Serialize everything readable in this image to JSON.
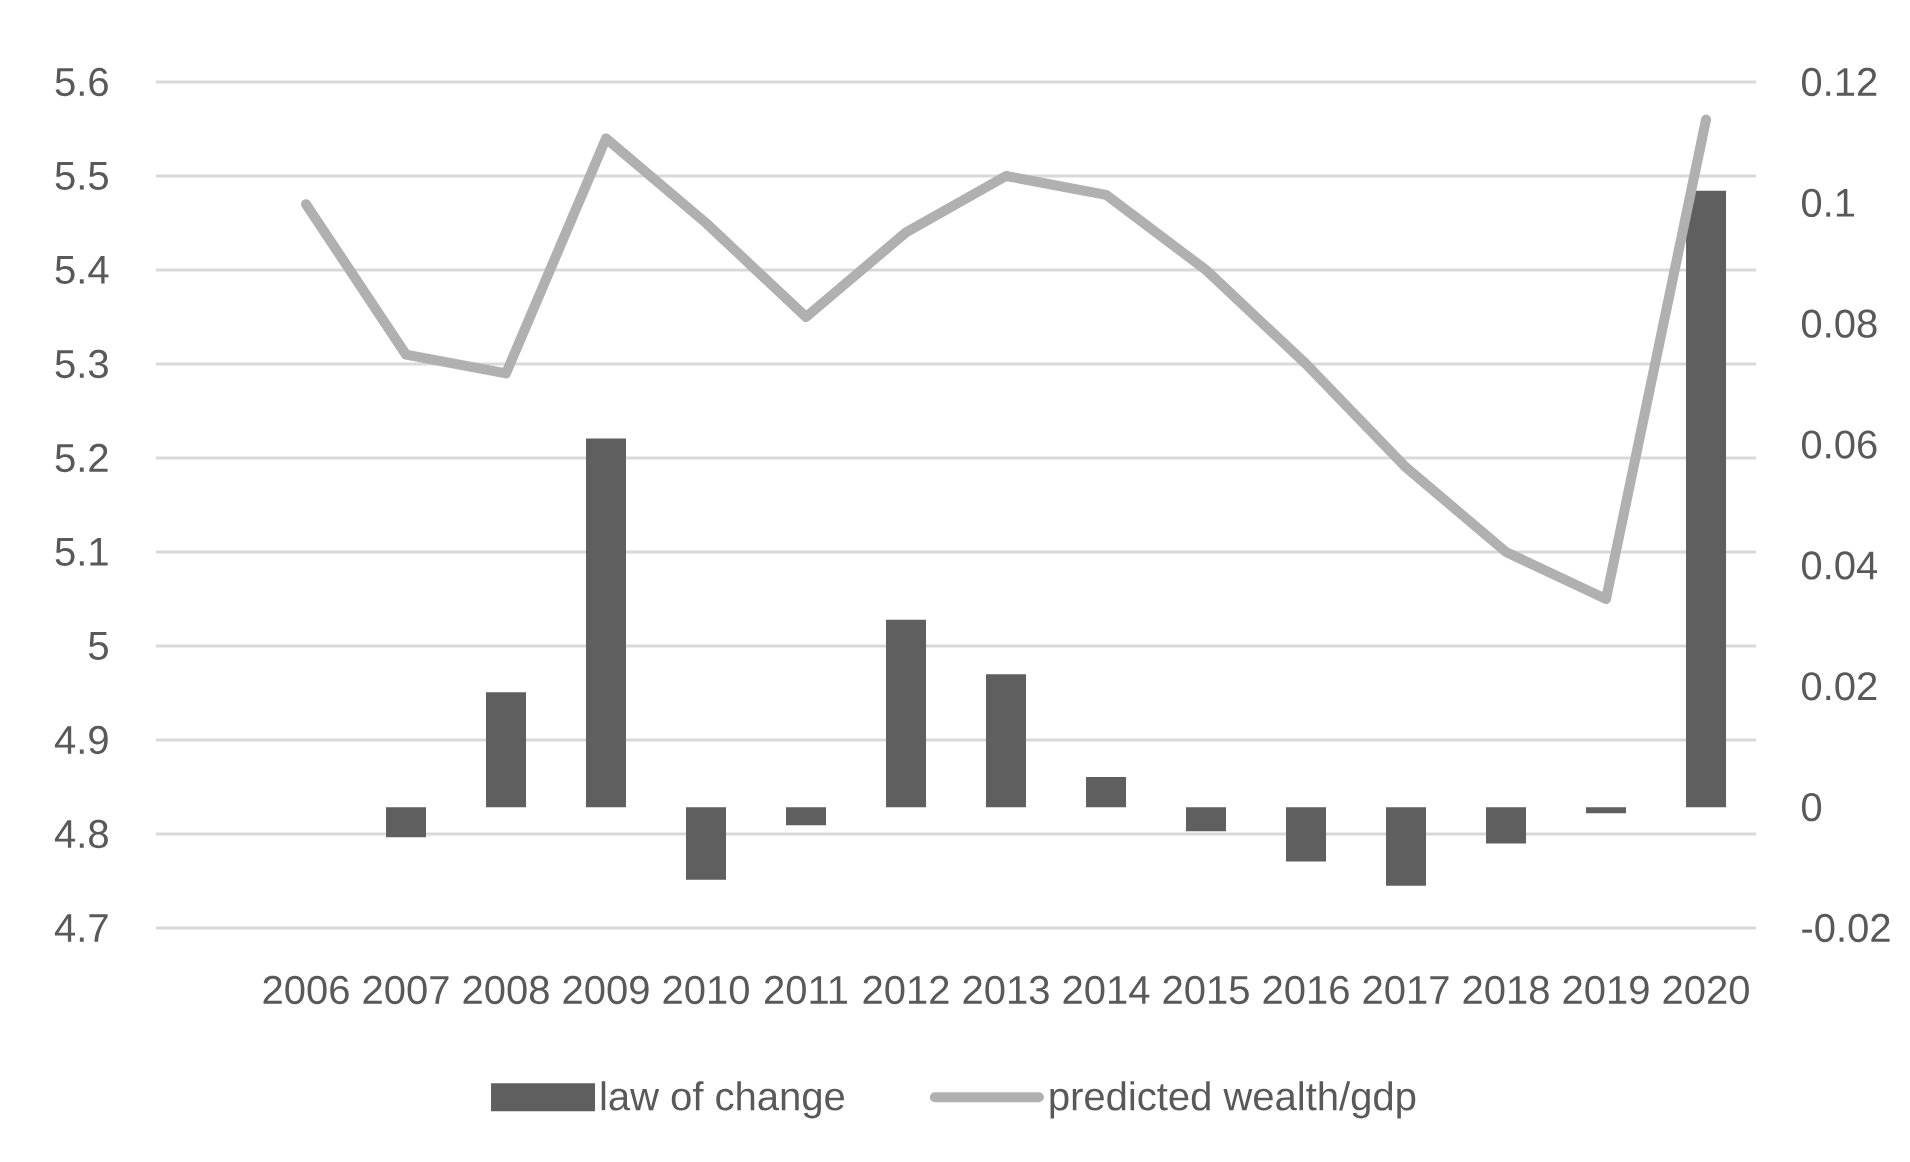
{
  "chart_data": {
    "type": "bar",
    "categories": [
      null,
      "2006",
      "2007",
      "2008",
      "2009",
      "2010",
      "2011",
      "2012",
      "2013",
      "2014",
      "2015",
      "2016",
      "2017",
      "2018",
      "2019",
      "2020"
    ],
    "series": [
      {
        "name": "law of change",
        "axis": "y2",
        "color": "#5f5f5f",
        "values": [
          null,
          null,
          -0.005,
          0.019,
          0.061,
          -0.012,
          -0.003,
          0.031,
          0.022,
          0.005,
          -0.004,
          -0.009,
          -0.013,
          -0.006,
          -0.001,
          0.102
        ]
      },
      {
        "name": "predicted wealth/gdp",
        "type": "line",
        "color": "#b0b0b0",
        "values": [
          null,
          5.47,
          5.31,
          5.29,
          5.54,
          5.45,
          5.35,
          5.44,
          5.5,
          5.48,
          5.4,
          5.3,
          5.19,
          5.1,
          5.05,
          5.56
        ]
      }
    ],
    "ylim": [
      4.7,
      5.6
    ],
    "yticks": [
      4.7,
      4.8,
      4.9,
      5,
      5.1,
      5.2,
      5.3,
      5.4,
      5.5,
      5.6
    ],
    "y2lim": [
      -0.02,
      0.12
    ],
    "y2ticks": [
      -0.02,
      0,
      0.02,
      0.04,
      0.06,
      0.08,
      0.1,
      0.12
    ],
    "grid": "y",
    "legend": "bottom"
  }
}
